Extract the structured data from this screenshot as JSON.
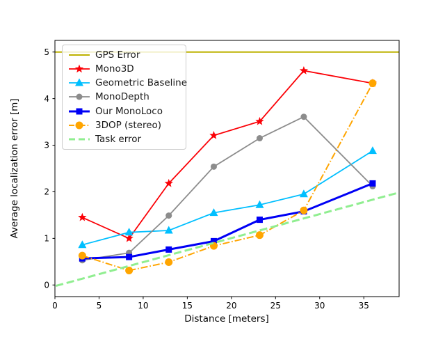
{
  "figure": {
    "background": "#ffffff"
  },
  "chart_data": {
    "type": "line",
    "title": "",
    "xlabel": "Distance [meters]",
    "ylabel": "Average localization error [m]",
    "xlim": [
      0,
      39
    ],
    "ylim": [
      -0.25,
      5.25
    ],
    "xticks": [
      0,
      5,
      10,
      15,
      20,
      25,
      30,
      35
    ],
    "yticks": [
      0,
      1,
      2,
      3,
      4,
      5
    ],
    "grid": false,
    "legend_position": "upper-left",
    "series": [
      {
        "name": "GPS Error",
        "color": "#bdb200",
        "linestyle": "solid",
        "linewidth": 2,
        "marker": "none",
        "markersize": 0,
        "points": [
          [
            0,
            5.0
          ],
          [
            39,
            5.0
          ]
        ]
      },
      {
        "name": "Mono3D",
        "color": "#fb0006",
        "linestyle": "solid",
        "linewidth": 1.8,
        "marker": "star",
        "markersize": 13,
        "points": [
          [
            3.1,
            1.45
          ],
          [
            8.4,
            1.0
          ],
          [
            12.9,
            2.18
          ],
          [
            18,
            3.21
          ],
          [
            23.2,
            3.51
          ],
          [
            28.2,
            4.6
          ],
          [
            36,
            4.33
          ]
        ]
      },
      {
        "name": "Geometric Baseline",
        "color": "#00bfff",
        "linestyle": "solid",
        "linewidth": 1.8,
        "marker": "triangle",
        "markersize": 11,
        "points": [
          [
            3.1,
            0.86
          ],
          [
            8.4,
            1.13
          ],
          [
            12.9,
            1.17
          ],
          [
            18,
            1.55
          ],
          [
            23.2,
            1.72
          ],
          [
            28.2,
            1.95
          ],
          [
            36,
            2.88
          ]
        ]
      },
      {
        "name": "MonoDepth",
        "color": "#8c8c8c",
        "linestyle": "solid",
        "linewidth": 1.8,
        "marker": "circle",
        "markersize": 9,
        "points": [
          [
            3.1,
            0.53
          ],
          [
            8.4,
            0.69
          ],
          [
            12.9,
            1.49
          ],
          [
            18,
            2.54
          ],
          [
            23.2,
            3.15
          ],
          [
            28.2,
            3.61
          ],
          [
            36,
            2.12
          ]
        ]
      },
      {
        "name": "Our MonoLoco",
        "color": "#0000f5",
        "linestyle": "solid",
        "linewidth": 3,
        "marker": "square",
        "markersize": 9,
        "points": [
          [
            3.1,
            0.57
          ],
          [
            8.4,
            0.6
          ],
          [
            12.9,
            0.76
          ],
          [
            18,
            0.94
          ],
          [
            23.2,
            1.4
          ],
          [
            28.2,
            1.58
          ],
          [
            36,
            2.18
          ]
        ]
      },
      {
        "name": "3DOP (stereo)",
        "color": "#ffa500",
        "linestyle": "dashdot",
        "linewidth": 2,
        "marker": "circle",
        "markersize": 11,
        "points": [
          [
            3.1,
            0.63
          ],
          [
            8.4,
            0.31
          ],
          [
            12.9,
            0.49
          ],
          [
            18,
            0.84
          ],
          [
            23.2,
            1.07
          ],
          [
            28.2,
            1.6
          ],
          [
            36,
            4.33
          ]
        ]
      },
      {
        "name": "Task error",
        "color": "#90ee90",
        "linestyle": "dashed",
        "linewidth": 3,
        "marker": "none",
        "markersize": 0,
        "points": [
          [
            0.1,
            -0.02
          ],
          [
            38.9,
            1.98
          ]
        ]
      }
    ]
  }
}
